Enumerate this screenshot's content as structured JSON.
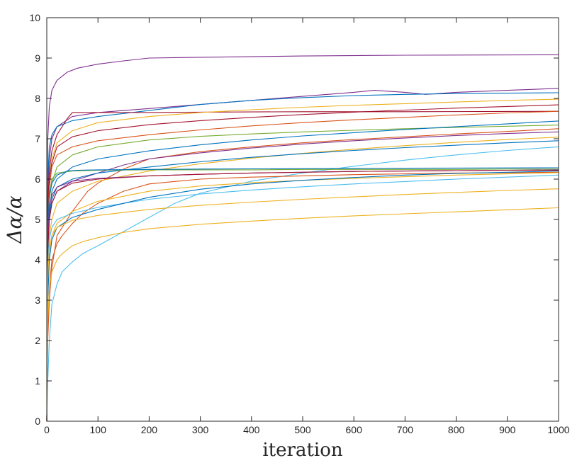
{
  "chart_data": {
    "type": "line",
    "xlabel": "iteration",
    "ylabel": "Δα/α",
    "xlim": [
      0,
      1000
    ],
    "ylim": [
      0,
      10
    ],
    "xticks": [
      0,
      100,
      200,
      300,
      400,
      500,
      600,
      700,
      800,
      900,
      1000
    ],
    "yticks": [
      0,
      1,
      2,
      3,
      4,
      5,
      6,
      7,
      8,
      9,
      10
    ],
    "grid": false,
    "legend": "none",
    "box": true,
    "series_style": "matlab-default-colororder",
    "colors": [
      "#0072BD",
      "#D95319",
      "#EDB120",
      "#7E2F8E",
      "#77AC30",
      "#4DBEEE",
      "#A2142F"
    ],
    "series": [
      {
        "color": "#7E2F8E",
        "x": [
          0,
          2,
          5,
          10,
          20,
          40,
          60,
          100,
          150,
          200,
          300,
          500,
          700,
          1000
        ],
        "y": [
          0,
          7.0,
          7.8,
          8.2,
          8.45,
          8.65,
          8.75,
          8.85,
          8.93,
          9.0,
          9.02,
          9.05,
          9.07,
          9.08
        ]
      },
      {
        "color": "#7E2F8E",
        "x": [
          0,
          2,
          5,
          10,
          20,
          50,
          100,
          200,
          300,
          400,
          500,
          600,
          640,
          700,
          740,
          800,
          900,
          1000
        ],
        "y": [
          0,
          5.8,
          6.5,
          7.0,
          7.3,
          7.55,
          7.65,
          7.75,
          7.85,
          7.95,
          8.05,
          8.15,
          8.2,
          8.15,
          8.1,
          8.15,
          8.2,
          8.25
        ]
      },
      {
        "color": "#0072BD",
        "x": [
          0,
          2,
          5,
          10,
          20,
          50,
          100,
          200,
          300,
          400,
          500,
          600,
          700,
          800,
          900,
          1000
        ],
        "y": [
          0,
          6.0,
          6.8,
          7.1,
          7.3,
          7.45,
          7.55,
          7.7,
          7.85,
          7.95,
          8.02,
          8.07,
          8.1,
          8.12,
          8.13,
          8.14
        ]
      },
      {
        "color": "#A2142F",
        "x": [
          0,
          2,
          5,
          10,
          20,
          40,
          50,
          100,
          200,
          300,
          500,
          700,
          1000
        ],
        "y": [
          0,
          5.5,
          6.2,
          6.7,
          7.1,
          7.5,
          7.65,
          7.65,
          7.65,
          7.66,
          7.67,
          7.67,
          7.68
        ]
      },
      {
        "color": "#EDB120",
        "x": [
          0,
          2,
          5,
          10,
          20,
          50,
          100,
          200,
          300,
          400,
          500,
          600,
          700,
          800,
          900,
          1000
        ],
        "y": [
          0,
          5.0,
          6.0,
          6.5,
          6.9,
          7.2,
          7.4,
          7.55,
          7.65,
          7.72,
          7.78,
          7.83,
          7.87,
          7.91,
          7.95,
          7.98
        ]
      },
      {
        "color": "#A2142F",
        "x": [
          0,
          2,
          5,
          10,
          20,
          50,
          100,
          200,
          300,
          400,
          500,
          600,
          700,
          800,
          900,
          1000
        ],
        "y": [
          0,
          5.2,
          6.0,
          6.4,
          6.8,
          7.05,
          7.2,
          7.35,
          7.45,
          7.53,
          7.6,
          7.66,
          7.71,
          7.76,
          7.8,
          7.84
        ]
      },
      {
        "color": "#D95319",
        "x": [
          0,
          2,
          5,
          10,
          20,
          50,
          100,
          200,
          300,
          400,
          500,
          600,
          700,
          800,
          900,
          1000
        ],
        "y": [
          0,
          4.8,
          5.8,
          6.3,
          6.6,
          6.8,
          6.95,
          7.1,
          7.22,
          7.32,
          7.4,
          7.47,
          7.53,
          7.59,
          7.64,
          7.68
        ]
      },
      {
        "color": "#77AC30",
        "x": [
          0,
          2,
          5,
          10,
          20,
          50,
          100,
          200,
          300,
          400,
          500,
          600,
          700,
          800,
          900,
          1000
        ],
        "y": [
          0,
          4.5,
          5.5,
          5.9,
          6.3,
          6.6,
          6.8,
          6.97,
          7.06,
          7.12,
          7.17,
          7.21,
          7.25,
          7.28,
          7.31,
          7.34
        ]
      },
      {
        "color": "#0072BD",
        "x": [
          0,
          2,
          5,
          10,
          20,
          50,
          100,
          200,
          300,
          400,
          500,
          600,
          700,
          800,
          900,
          1000
        ],
        "y": [
          0,
          4.3,
          5.2,
          5.7,
          6.0,
          6.3,
          6.5,
          6.7,
          6.85,
          6.97,
          7.07,
          7.15,
          7.23,
          7.3,
          7.37,
          7.44
        ]
      },
      {
        "color": "#D95319",
        "x": [
          0,
          2,
          5,
          10,
          20,
          50,
          80,
          100,
          150,
          200,
          300,
          400,
          500,
          600,
          700,
          800,
          900,
          1000
        ],
        "y": [
          0,
          2.0,
          3.0,
          3.8,
          4.6,
          5.2,
          5.7,
          5.9,
          6.25,
          6.5,
          6.68,
          6.8,
          6.9,
          6.98,
          7.05,
          7.12,
          7.18,
          7.25
        ]
      },
      {
        "color": "#7E2F8E",
        "x": [
          0,
          2,
          5,
          10,
          20,
          50,
          100,
          150,
          200,
          300,
          400,
          500,
          600,
          700,
          800,
          900,
          1000
        ],
        "y": [
          0,
          4.0,
          5.0,
          5.4,
          5.7,
          5.95,
          6.15,
          6.35,
          6.5,
          6.65,
          6.77,
          6.87,
          6.95,
          7.02,
          7.08,
          7.13,
          7.17
        ]
      },
      {
        "color": "#EDB120",
        "x": [
          0,
          2,
          5,
          10,
          20,
          50,
          100,
          200,
          300,
          400,
          500,
          600,
          700,
          800,
          900,
          1000
        ],
        "y": [
          0,
          3.8,
          4.6,
          5.0,
          5.4,
          5.7,
          5.95,
          6.2,
          6.38,
          6.52,
          6.64,
          6.74,
          6.83,
          6.91,
          6.98,
          7.04
        ]
      },
      {
        "color": "#0072BD",
        "x": [
          0,
          2,
          5,
          10,
          20,
          50,
          100,
          200,
          300,
          400,
          500,
          600,
          700,
          800,
          900,
          1000
        ],
        "y": [
          0,
          4.2,
          5.1,
          5.5,
          5.8,
          6.0,
          6.15,
          6.3,
          6.43,
          6.54,
          6.63,
          6.71,
          6.78,
          6.84,
          6.9,
          6.95
        ]
      },
      {
        "color": "#4DBEEE",
        "x": [
          0,
          2,
          5,
          10,
          20,
          30,
          50,
          70,
          100,
          150,
          200,
          250,
          300,
          400,
          500,
          600,
          700,
          800,
          900,
          1000
        ],
        "y": [
          0,
          1.0,
          2.0,
          2.9,
          3.4,
          3.7,
          3.95,
          4.15,
          4.35,
          4.7,
          5.05,
          5.4,
          5.65,
          5.95,
          6.15,
          6.32,
          6.47,
          6.6,
          6.71,
          6.8
        ]
      },
      {
        "color": "#77AC30",
        "x": [
          0,
          2,
          5,
          10,
          20,
          50,
          100,
          200,
          300,
          400,
          500,
          600,
          700,
          800,
          900,
          1000
        ],
        "y": [
          0,
          4.5,
          5.6,
          6.0,
          6.15,
          6.2,
          6.22,
          6.23,
          6.23,
          6.23,
          6.24,
          6.24,
          6.24,
          6.24,
          6.25,
          6.25
        ]
      },
      {
        "color": "#0072BD",
        "x": [
          0,
          2,
          5,
          10,
          20,
          40,
          60,
          100,
          200,
          300,
          500,
          700,
          1000
        ],
        "y": [
          0,
          4.8,
          5.6,
          5.9,
          6.1,
          6.2,
          6.22,
          6.23,
          6.24,
          6.25,
          6.26,
          6.27,
          6.28
        ]
      },
      {
        "color": "#7E2F8E",
        "x": [
          0,
          2,
          5,
          10,
          20,
          50,
          100,
          200,
          300,
          400,
          500,
          600,
          700,
          800,
          900,
          1000
        ],
        "y": [
          0,
          4.5,
          5.3,
          5.6,
          5.8,
          5.95,
          6.02,
          6.08,
          6.12,
          6.15,
          6.17,
          6.19,
          6.2,
          6.21,
          6.22,
          6.23
        ]
      },
      {
        "color": "#A2142F",
        "x": [
          0,
          2,
          5,
          10,
          20,
          50,
          100,
          200,
          300,
          400,
          500,
          600,
          700,
          800,
          900,
          1000
        ],
        "y": [
          0,
          4.3,
          5.0,
          5.4,
          5.7,
          5.9,
          6.0,
          6.08,
          6.12,
          6.15,
          6.17,
          6.19,
          6.2,
          6.21,
          6.22,
          6.22
        ]
      },
      {
        "color": "#D95319",
        "x": [
          0,
          2,
          5,
          10,
          20,
          30,
          50,
          70,
          100,
          150,
          200,
          300,
          400,
          500,
          600,
          700,
          800,
          900,
          1000
        ],
        "y": [
          0,
          2.2,
          3.3,
          4.0,
          4.4,
          4.6,
          4.9,
          5.15,
          5.4,
          5.7,
          5.88,
          6.0,
          6.05,
          6.08,
          6.11,
          6.13,
          6.15,
          6.16,
          6.17
        ]
      },
      {
        "color": "#EDB120",
        "x": [
          0,
          2,
          5,
          10,
          20,
          50,
          100,
          200,
          300,
          400,
          500,
          600,
          700,
          800,
          900,
          1000
        ],
        "y": [
          0,
          3.5,
          4.2,
          4.6,
          4.9,
          5.2,
          5.45,
          5.7,
          5.83,
          5.91,
          5.97,
          6.02,
          6.06,
          6.1,
          6.13,
          6.16
        ]
      },
      {
        "color": "#4DBEEE",
        "x": [
          0,
          2,
          5,
          10,
          20,
          50,
          100,
          200,
          300,
          400,
          500,
          600,
          700,
          800,
          900,
          1000
        ],
        "y": [
          0,
          3.8,
          4.5,
          4.8,
          5.0,
          5.15,
          5.3,
          5.5,
          5.63,
          5.73,
          5.81,
          5.88,
          5.94,
          6.0,
          6.05,
          6.1
        ]
      },
      {
        "color": "#0072BD",
        "x": [
          0,
          2,
          5,
          10,
          20,
          50,
          100,
          200,
          300,
          400,
          500,
          600,
          700,
          800,
          900,
          1000
        ],
        "y": [
          0,
          3.0,
          4.0,
          4.5,
          4.8,
          5.05,
          5.25,
          5.55,
          5.75,
          5.88,
          5.97,
          6.04,
          6.1,
          6.14,
          6.17,
          6.2
        ]
      },
      {
        "color": "#EDB120",
        "x": [
          0,
          2,
          5,
          10,
          20,
          50,
          100,
          200,
          300,
          400,
          500,
          600,
          700,
          800,
          900,
          1000
        ],
        "y": [
          0,
          3.6,
          4.3,
          4.6,
          4.8,
          4.98,
          5.1,
          5.25,
          5.35,
          5.43,
          5.5,
          5.56,
          5.62,
          5.67,
          5.72,
          5.76
        ]
      },
      {
        "color": "#EDB120",
        "x": [
          0,
          2,
          5,
          10,
          20,
          30,
          50,
          70,
          100,
          150,
          200,
          300,
          400,
          500,
          600,
          700,
          800,
          900,
          1000
        ],
        "y": [
          0,
          2.5,
          3.3,
          3.7,
          4.0,
          4.15,
          4.35,
          4.45,
          4.55,
          4.68,
          4.77,
          4.88,
          4.96,
          5.03,
          5.09,
          5.14,
          5.19,
          5.24,
          5.29
        ]
      }
    ]
  }
}
